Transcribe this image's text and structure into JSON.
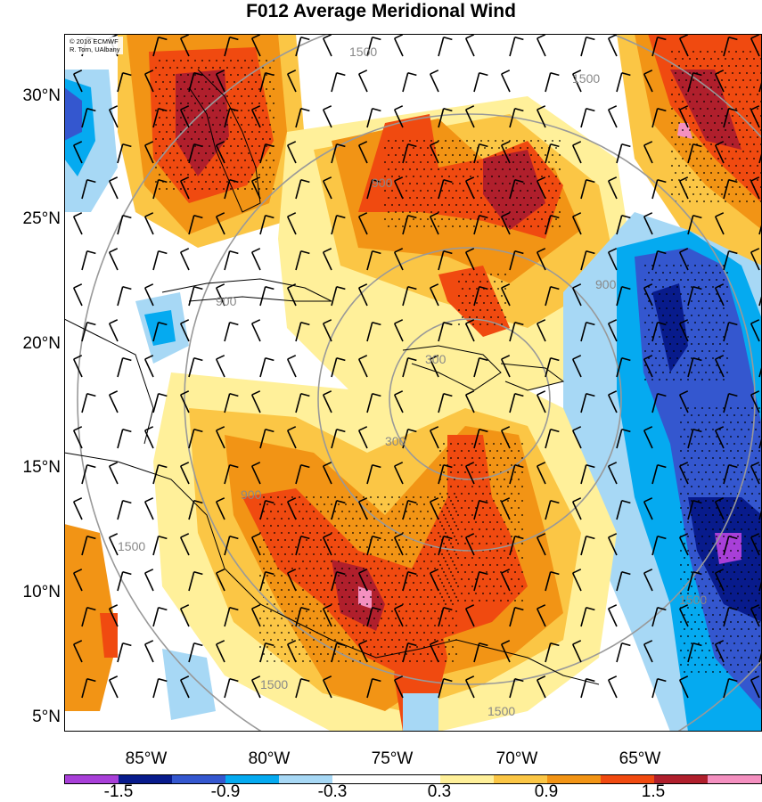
{
  "title": "F012 Average Meridional Wind",
  "credit": {
    "line1": "© 2016 ECMWF",
    "line2": "R. Torn, UAlbany"
  },
  "lat_labels": [
    "30°N",
    "25°N",
    "20°N",
    "15°N",
    "10°N",
    "5°N"
  ],
  "lon_labels": [
    "85°W",
    "80°W",
    "75°W",
    "70°W",
    "65°W"
  ],
  "range_ring_labels": [
    "300",
    "900",
    "1500"
  ],
  "colorbar": {
    "colors": [
      "#a83fd8",
      "#081b8c",
      "#3457cf",
      "#05aaf0",
      "#a7d8f5",
      "#ffffff",
      "#ffffff",
      "#fff09a",
      "#fbc645",
      "#f29415",
      "#f04a10",
      "#b01f2c",
      "#f490c0"
    ],
    "labels": [
      "-1.5",
      "-0.9",
      "-0.3",
      "0.3",
      "0.9",
      "1.5"
    ]
  },
  "colors": {
    "ring": "#999999",
    "coast": "#000000",
    "barb": "#000000"
  }
}
